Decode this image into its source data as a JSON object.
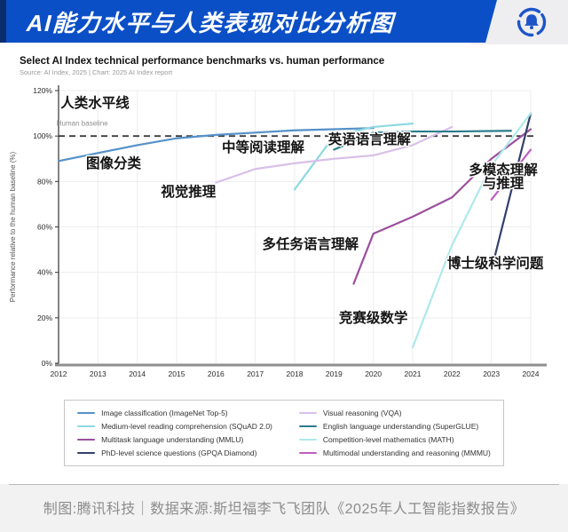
{
  "header": {
    "title": "AI能力水平与人类表现对比分析图",
    "banner_color": "#0b4fc7",
    "accent_strip_color": "#0a2d6e",
    "logo_color": "#1d55c8"
  },
  "chart": {
    "title": "Select AI Index technical performance benchmarks vs. human performance",
    "source": "Source: AI Index, 2025 | Chart: 2025 AI Index report"
  },
  "chart_data": {
    "type": "line",
    "title": "Select AI Index technical performance benchmarks vs. human performance",
    "subtitle": "Source: AI Index, 2025 | Chart: 2025 AI Index report",
    "xlabel": "",
    "ylabel": "Performance relative to the human baseline (%)",
    "xlim": [
      2012,
      2024
    ],
    "ylim": [
      0,
      120
    ],
    "x_ticks": [
      2012,
      2013,
      2014,
      2015,
      2016,
      2017,
      2018,
      2019,
      2020,
      2021,
      2022,
      2023,
      2024
    ],
    "y_ticks": [
      "0%",
      "20%",
      "40%",
      "60%",
      "80%",
      "100%",
      "120%"
    ],
    "grid": true,
    "legend_position": "bottom",
    "baseline": {
      "value": 100,
      "label": "Human baseline"
    },
    "series": [
      {
        "name": "Image classification (ImageNet Top-5)",
        "color": "#5591c9",
        "x": [
          2012,
          2013,
          2014,
          2015,
          2016,
          2017,
          2018,
          2019,
          2020
        ],
        "values": [
          89,
          92.5,
          96,
          99,
          100.5,
          101.5,
          102.5,
          103,
          103.5
        ]
      },
      {
        "name": "Medium-level reading comprehension (SQuAD 2.0)",
        "color": "#8ed9e0",
        "x": [
          2018,
          2019,
          2020,
          2021
        ],
        "values": [
          76.5,
          100,
          104,
          105.5
        ]
      },
      {
        "name": "Multitask language understanding (MMLU)",
        "color": "#9c4f9f",
        "x": [
          2019.5,
          2020,
          2021,
          2022,
          2023,
          2024
        ],
        "values": [
          35,
          57,
          64.5,
          73,
          90,
          103
        ]
      },
      {
        "name": "PhD-level science questions (GPQA Diamond)",
        "color": "#333f6b",
        "x": [
          2023,
          2024
        ],
        "values": [
          41,
          110
        ]
      },
      {
        "name": "Visual reasoning (VQA)",
        "color": "#d9c0e8",
        "x": [
          2016,
          2017,
          2018,
          2019,
          2020,
          2021,
          2022
        ],
        "values": [
          79.5,
          85.5,
          88,
          90,
          91.5,
          96,
          104
        ]
      },
      {
        "name": "English language understanding (SuperGLUE)",
        "color": "#2a7d8c",
        "x": [
          2019,
          2020,
          2021,
          2022,
          2023.5
        ],
        "values": [
          94,
          101.5,
          102,
          102,
          102.3
        ]
      },
      {
        "name": "Competition-level mathematics (MATH)",
        "color": "#aee9ea",
        "x": [
          2021,
          2022,
          2023,
          2024
        ],
        "values": [
          7,
          52,
          87,
          110
        ]
      },
      {
        "name": "Multimodal understanding and reasoning (MMMU)",
        "color": "#bd5fc0",
        "x": [
          2023,
          2024
        ],
        "values": [
          72,
          94
        ]
      }
    ],
    "annotations": [
      {
        "text": "人类水平线",
        "x": 2012.05,
        "y": 112.5,
        "anchor": "start"
      },
      {
        "text": "Human baseline",
        "x": 2011.95,
        "y": 104.5,
        "anchor": "start",
        "size": 8,
        "weight": 400,
        "color": "#8e8e8e",
        "halo": false
      },
      {
        "text": "图像分类",
        "x": 2013.4,
        "y": 86
      },
      {
        "text": "视觉推理",
        "x": 2015.3,
        "y": 73.5
      },
      {
        "text": "中等阅读理解",
        "x": 2017.2,
        "y": 93
      },
      {
        "text": "英语语言理解",
        "x": 2019.9,
        "y": 96.5
      },
      {
        "text": "多任务语言理解",
        "x": 2018.4,
        "y": 50.5
      },
      {
        "text": "竞赛级数学",
        "x": 2020.0,
        "y": 18
      },
      {
        "text": "多模态理解与推理",
        "x": 2023.3,
        "y": 83,
        "lines": [
          "多模态理解",
          "与推理"
        ]
      },
      {
        "text": "博士级科学问题",
        "x": 2023.1,
        "y": 42
      }
    ]
  },
  "footer": {
    "text": "制图:腾讯科技｜数据来源:斯坦福李飞飞团队《2025年人工智能指数报告》"
  }
}
